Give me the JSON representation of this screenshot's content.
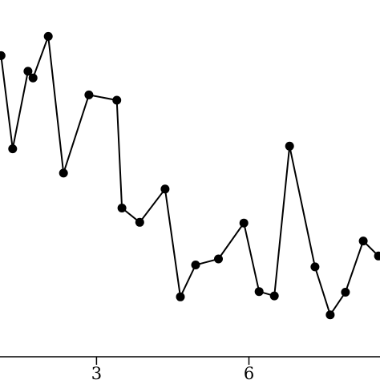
{
  "chart_data": {
    "type": "line",
    "title": "",
    "xlabel": "",
    "ylabel": "",
    "x_ticks": [
      "3",
      "6"
    ],
    "xlim": [
      1.1,
      8.58
    ],
    "ylim": [
      0,
      1
    ],
    "grid": false,
    "series": [
      {
        "color": "#000000",
        "marker": "circle",
        "points": [
          [
            1.12,
            0.905
          ],
          [
            1.35,
            0.625
          ],
          [
            1.65,
            0.858
          ],
          [
            1.75,
            0.838
          ],
          [
            2.05,
            0.963
          ],
          [
            2.35,
            0.552
          ],
          [
            2.85,
            0.787
          ],
          [
            3.4,
            0.771
          ],
          [
            3.5,
            0.447
          ],
          [
            3.85,
            0.404
          ],
          [
            4.35,
            0.504
          ],
          [
            4.65,
            0.18
          ],
          [
            4.95,
            0.276
          ],
          [
            5.4,
            0.294
          ],
          [
            5.9,
            0.402
          ],
          [
            6.2,
            0.196
          ],
          [
            6.5,
            0.183
          ],
          [
            6.8,
            0.633
          ],
          [
            7.3,
            0.27
          ],
          [
            7.6,
            0.126
          ],
          [
            7.9,
            0.194
          ],
          [
            8.25,
            0.348
          ],
          [
            8.55,
            0.303
          ]
        ]
      }
    ]
  }
}
